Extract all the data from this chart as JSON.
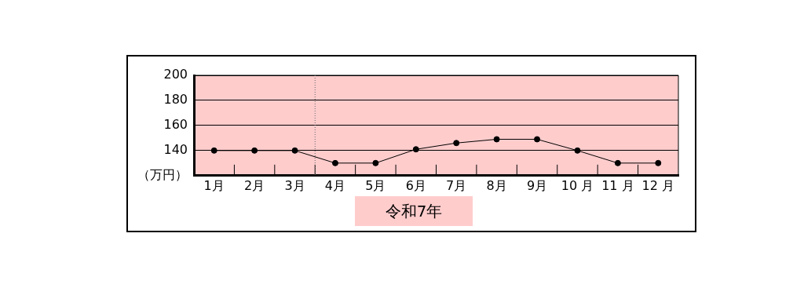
{
  "chart_data": {
    "type": "line",
    "xlabel": "令和7年",
    "x": [
      1,
      2,
      3,
      4,
      5,
      6,
      7,
      8,
      9,
      10,
      11,
      12
    ],
    "series": [
      {
        "color": "#000000",
        "values": [
          140,
          140,
          140,
          130,
          130,
          141,
          146,
          149,
          149,
          140,
          130,
          130
        ]
      }
    ],
    "xlim": [
      0.5,
      12.5
    ],
    "xticks": [
      {
        "value": 1,
        "label": "1月"
      },
      {
        "value": 1.5,
        "label": null
      },
      {
        "value": 2,
        "label": "2月"
      },
      {
        "value": 2.5,
        "label": null
      },
      {
        "value": 3,
        "label": "3月"
      },
      {
        "value": 3.5,
        "label": null
      },
      {
        "value": 4,
        "label": "4月"
      },
      {
        "value": 4.5,
        "label": null
      },
      {
        "value": 5,
        "label": "5月"
      },
      {
        "value": 5.5,
        "label": null
      },
      {
        "value": 6,
        "label": "6月"
      },
      {
        "value": 6.5,
        "label": null
      },
      {
        "value": 7,
        "label": "7月"
      },
      {
        "value": 7.5,
        "label": null
      },
      {
        "value": 8,
        "label": "8月"
      },
      {
        "value": 8.5,
        "label": null
      },
      {
        "value": 9,
        "label": "9月"
      },
      {
        "value": 9.5,
        "label": null
      },
      {
        "value": 10,
        "label": "10 月"
      },
      {
        "value": 10.5,
        "label": null
      },
      {
        "value": 11,
        "label": "11 月"
      },
      {
        "value": 11.5,
        "label": null
      },
      {
        "value": 12,
        "label": "12 月"
      }
    ],
    "ylim": [
      120,
      200
    ],
    "yticks": [
      {
        "value": 120,
        "label": "（万円）"
      },
      140,
      160,
      180,
      200
    ],
    "grid": "y",
    "marker": "circle",
    "line_style": "solid",
    "legend": false,
    "ref_lines": [
      {
        "axis": "x",
        "value": 3.5,
        "color": "#666666",
        "line_style": "dotted"
      }
    ]
  }
}
